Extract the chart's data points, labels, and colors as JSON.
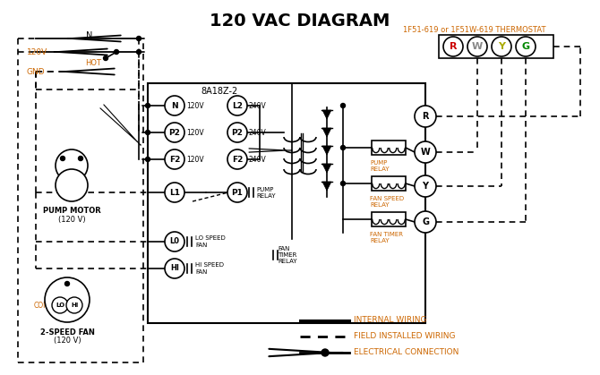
{
  "title": "120 VAC DIAGRAM",
  "title_fontsize": 14,
  "title_fontweight": "bold",
  "bg_color": "#ffffff",
  "line_color": "#000000",
  "orange_color": "#cc6600",
  "thermostat_label": "1F51-619 or 1F51W-619 THERMOSTAT",
  "box_label": "8A18Z-2",
  "legend_items": [
    {
      "label": "INTERNAL WIRING",
      "style": "solid"
    },
    {
      "label": "FIELD INSTALLED WIRING",
      "style": "dashed"
    },
    {
      "label": "ELECTRICAL CONNECTION",
      "style": "dot_arrow"
    }
  ],
  "therm_colors": [
    "#cc0000",
    "#888888",
    "#aaaa00",
    "#008800"
  ],
  "therm_labels": [
    "R",
    "W",
    "Y",
    "G"
  ],
  "relay_labels": [
    "PUMP\nRELAY",
    "FAN SPEED\nRELAY",
    "FAN TIMER\nRELAY"
  ],
  "contact_labels": [
    "R",
    "W",
    "Y",
    "G"
  ]
}
